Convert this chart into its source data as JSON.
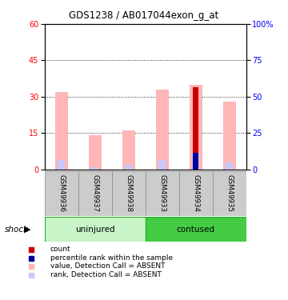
{
  "title": "GDS1238 / AB017044exon_g_at",
  "samples": [
    "GSM49936",
    "GSM49937",
    "GSM49938",
    "GSM49933",
    "GSM49934",
    "GSM49935"
  ],
  "groups": [
    {
      "name": "uninjured",
      "indices": [
        0,
        1,
        2
      ],
      "color": "#c8f5c8"
    },
    {
      "name": "contused",
      "indices": [
        3,
        4,
        5
      ],
      "color": "#44cc44"
    }
  ],
  "group_label": "shock",
  "ylim_left": [
    0,
    60
  ],
  "ylim_right": [
    0,
    100
  ],
  "yticks_left": [
    0,
    15,
    30,
    45,
    60
  ],
  "yticks_right": [
    0,
    25,
    50,
    75,
    100
  ],
  "ytick_labels_left": [
    "0",
    "15",
    "30",
    "45",
    "60"
  ],
  "ytick_labels_right": [
    "0",
    "25",
    "50",
    "75",
    "100%"
  ],
  "value_bars": [
    32,
    14,
    16,
    33,
    35,
    28
  ],
  "rank_bars": [
    4,
    1,
    2,
    4,
    7,
    3
  ],
  "count_bars": [
    0,
    0,
    0,
    0,
    34,
    0
  ],
  "percentile_bars": [
    0,
    0,
    0,
    0,
    7,
    0
  ],
  "value_bar_color": "#ffb6b6",
  "rank_bar_color": "#c8c8ff",
  "count_bar_color": "#cc0000",
  "percentile_bar_color": "#000099",
  "bar_width": 0.38,
  "legend_items": [
    {
      "color": "#cc0000",
      "label": "count"
    },
    {
      "color": "#000099",
      "label": "percentile rank within the sample"
    },
    {
      "color": "#ffb6b6",
      "label": "value, Detection Call = ABSENT"
    },
    {
      "color": "#c8c8ff",
      "label": "rank, Detection Call = ABSENT"
    }
  ]
}
